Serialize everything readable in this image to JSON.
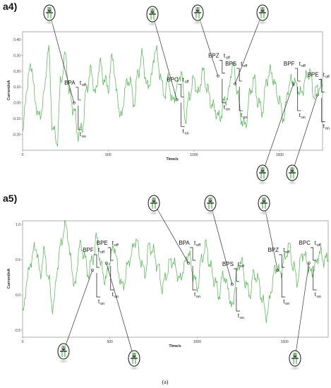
{
  "figure_caption": "(a)",
  "colors": {
    "trace": "#4db34d",
    "frame": "#555555",
    "annotation": "#111111"
  },
  "chart_data": [
    {
      "panel": "a4)",
      "type": "line",
      "xlabel": "Time/s",
      "ylabel": "Current/nA",
      "xlim": [
        0,
        1750
      ],
      "ylim": [
        -0.3,
        0.45
      ],
      "grid": false,
      "x_ticks": [
        0,
        500,
        1000,
        1500
      ],
      "y_ticks": [
        -0.2,
        -0.1,
        0.0,
        0.1,
        0.2,
        0.3,
        0.4
      ],
      "y_tick_labels": [
        "-0.20",
        "-0.10",
        "0.00",
        "0.10",
        "0.20",
        "0.30",
        "0.40"
      ],
      "series": [
        {
          "x": [
            0,
            25,
            50,
            75,
            100,
            125,
            150,
            175,
            200,
            225,
            250,
            275,
            300,
            325,
            350,
            375,
            400,
            425,
            450,
            475,
            500,
            525,
            550,
            575,
            600,
            625,
            650,
            675,
            700,
            725,
            750,
            775,
            800,
            825,
            850,
            875,
            900,
            925,
            950,
            975,
            1000,
            1025,
            1050,
            1075,
            1100,
            1125,
            1150,
            1175,
            1200,
            1225,
            1250,
            1275,
            1300,
            1325,
            1350,
            1375,
            1400,
            1425,
            1450,
            1475,
            1500,
            1525,
            1550,
            1575,
            1600,
            1625,
            1650,
            1675,
            1700,
            1725,
            1750
          ],
          "y": [
            -0.2,
            0.1,
            0.25,
            0.0,
            -0.1,
            0.05,
            0.35,
            -0.15,
            -0.25,
            0.15,
            0.3,
            0.05,
            -0.05,
            -0.2,
            -0.15,
            0.1,
            0.2,
            0.05,
            0.25,
            0.15,
            0.1,
            0.3,
            0.05,
            -0.1,
            0.1,
            0.15,
            0.0,
            0.2,
            0.3,
            0.1,
            0.15,
            0.35,
            0.2,
            0.05,
            0.15,
            0.0,
            0.1,
            0.2,
            -0.1,
            0.05,
            0.15,
            0.05,
            0.2,
            0.1,
            0.0,
            -0.05,
            -0.1,
            0.0,
            0.05,
            0.25,
            0.1,
            -0.1,
            -0.15,
            0.05,
            0.15,
            0.0,
            -0.05,
            0.15,
            0.2,
            0.1,
            0.0,
            -0.1,
            0.1,
            0.15,
            0.1,
            0.05,
            0.15,
            0.2,
            0.05,
            0.1,
            0.1
          ]
        }
      ],
      "events": [
        {
          "label": "BPA",
          "x": 300,
          "y": 0.0
        },
        {
          "label": "BPC",
          "x": 900,
          "y": 0.02
        },
        {
          "label": "BPZ",
          "x": 1140,
          "y": 0.17
        },
        {
          "label": "BPS",
          "x": 1240,
          "y": 0.12
        },
        {
          "label": "BPF",
          "x": 1580,
          "y": 0.12
        },
        {
          "label": "BPE",
          "x": 1720,
          "y": 0.05
        }
      ],
      "toff": "t",
      "toff_sub": "off",
      "ton": "t",
      "ton_sub": "on"
    },
    {
      "panel": "a5)",
      "type": "line",
      "xlabel": "Time/s",
      "ylabel": "Current/nA",
      "xlim": [
        0,
        1750
      ],
      "ylim": [
        -0.6,
        1.05
      ],
      "grid": false,
      "x_ticks": [
        0,
        500,
        1000,
        1500
      ],
      "y_ticks": [
        -0.5,
        0.0,
        0.5,
        1.0
      ],
      "y_tick_labels": [
        "-0.5",
        "0.0",
        "0.5",
        "1.0"
      ],
      "series": [
        {
          "x": [
            0,
            25,
            50,
            75,
            100,
            125,
            150,
            175,
            200,
            225,
            250,
            275,
            300,
            325,
            350,
            375,
            400,
            425,
            450,
            475,
            500,
            525,
            550,
            575,
            600,
            625,
            650,
            675,
            700,
            725,
            750,
            775,
            800,
            825,
            850,
            875,
            900,
            925,
            950,
            975,
            1000,
            1025,
            1050,
            1075,
            1100,
            1125,
            1150,
            1175,
            1200,
            1225,
            1250,
            1275,
            1300,
            1325,
            1350,
            1375,
            1400,
            1425,
            1450,
            1475,
            1500,
            1525,
            1550,
            1575,
            1600,
            1625,
            1650,
            1675,
            1700,
            1725,
            1750
          ],
          "y": [
            -0.3,
            0.2,
            0.5,
            0.7,
            0.3,
            0.6,
            0.2,
            -0.2,
            0.4,
            0.8,
            1.0,
            0.5,
            0.1,
            0.7,
            0.6,
            0.3,
            0.5,
            0.8,
            0.4,
            0.2,
            0.5,
            0.7,
            0.3,
            0.1,
            0.4,
            0.6,
            0.8,
            0.5,
            0.3,
            0.7,
            0.6,
            0.4,
            0.1,
            0.3,
            0.5,
            0.4,
            0.2,
            0.4,
            0.6,
            0.3,
            0.1,
            0.5,
            0.7,
            0.4,
            0.2,
            0.0,
            0.3,
            0.1,
            -0.2,
            0.3,
            0.5,
            0.2,
            0.0,
            0.3,
            0.2,
            -0.1,
            -0.3,
            0.1,
            0.4,
            0.3,
            0.5,
            0.7,
            0.4,
            0.2,
            0.6,
            0.5,
            0.3,
            0.4,
            0.6,
            0.5,
            0.5
          ]
        }
      ],
      "events": [
        {
          "label": "BPF",
          "x": 400,
          "y": 0.35
        },
        {
          "label": "BPE",
          "x": 480,
          "y": 0.45
        },
        {
          "label": "BPA",
          "x": 950,
          "y": 0.45
        },
        {
          "label": "BPS",
          "x": 1200,
          "y": 0.15
        },
        {
          "label": "BPZ",
          "x": 1460,
          "y": 0.35
        },
        {
          "label": "BPC",
          "x": 1640,
          "y": 0.45
        }
      ],
      "toff": "t",
      "toff_sub": "off",
      "ton": "t",
      "ton_sub": "on"
    }
  ]
}
